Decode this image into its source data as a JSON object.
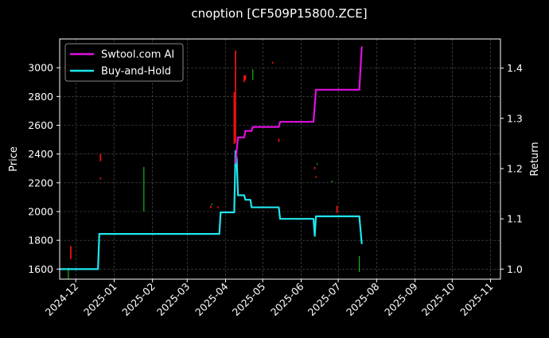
{
  "chart_data": {
    "type": "line",
    "title": "cnoption [CF509P15800.ZCE]",
    "xlabel": "",
    "ylabel": "Price",
    "y2label": "Return",
    "ylim": [
      1530,
      3200
    ],
    "y2lim": [
      0.98,
      1.458
    ],
    "yticks": [
      1600,
      1800,
      2000,
      2200,
      2400,
      2600,
      2800,
      3000
    ],
    "y2ticks": [
      1.0,
      1.1,
      1.2,
      1.3,
      1.4
    ],
    "y2tick_labels": [
      "1.0",
      "1.1",
      "1.2",
      "1.3",
      "1.4"
    ],
    "xlim": [
      "2024-11-18",
      "2025-11-09"
    ],
    "xticks": [
      "2024-12-01",
      "2025-01-01",
      "2025-02-01",
      "2025-03-01",
      "2025-04-01",
      "2025-05-01",
      "2025-06-01",
      "2025-07-01",
      "2025-08-01",
      "2025-09-01",
      "2025-10-01",
      "2025-11-01"
    ],
    "xtick_labels": [
      "2024-12",
      "2025-01",
      "2025-02",
      "2025-03",
      "2025-04",
      "2025-05",
      "2025-06",
      "2025-07",
      "2025-08",
      "2025-09",
      "2025-10",
      "2025-11"
    ],
    "grid": true,
    "legend_position": "top-left",
    "colors": {
      "background": "#000000",
      "strategy": "#e010e0",
      "benchmark": "#1ee6ee",
      "up": "#18b418",
      "down": "#ee1010",
      "grid": "#555555"
    },
    "series": [
      {
        "name": "Swtool.com AI",
        "axis": "return",
        "points": [
          [
            "2025-04-09",
            1.21
          ],
          [
            "2025-04-10",
            1.236
          ],
          [
            "2025-04-11",
            1.262
          ],
          [
            "2025-04-16",
            1.262
          ],
          [
            "2025-04-17",
            1.275
          ],
          [
            "2025-04-22",
            1.275
          ],
          [
            "2025-04-23",
            1.283
          ],
          [
            "2025-05-14",
            1.283
          ],
          [
            "2025-05-15",
            1.293
          ],
          [
            "2025-06-11",
            1.293
          ],
          [
            "2025-06-13",
            1.357
          ],
          [
            "2025-07-18",
            1.357
          ],
          [
            "2025-07-20",
            1.443
          ]
        ]
      },
      {
        "name": "Buy-and-Hold",
        "axis": "return",
        "points": [
          [
            "2024-11-18",
            1.0
          ],
          [
            "2024-12-19",
            1.0
          ],
          [
            "2024-12-20",
            1.07
          ],
          [
            "2025-03-27",
            1.07
          ],
          [
            "2025-03-28",
            1.113
          ],
          [
            "2025-04-08",
            1.113
          ],
          [
            "2025-04-09",
            1.235
          ],
          [
            "2025-04-10",
            1.22
          ],
          [
            "2025-04-11",
            1.147
          ],
          [
            "2025-04-16",
            1.147
          ],
          [
            "2025-04-17",
            1.138
          ],
          [
            "2025-04-21",
            1.138
          ],
          [
            "2025-04-22",
            1.123
          ],
          [
            "2025-05-14",
            1.123
          ],
          [
            "2025-05-15",
            1.1
          ],
          [
            "2025-06-11",
            1.1
          ],
          [
            "2025-06-12",
            1.066
          ],
          [
            "2025-06-13",
            1.105
          ],
          [
            "2025-07-18",
            1.105
          ],
          [
            "2025-07-20",
            1.05
          ]
        ]
      }
    ],
    "candles": [
      {
        "date": "2024-11-25",
        "low": 1530,
        "high": 1610,
        "dir": "up"
      },
      {
        "date": "2024-11-27",
        "low": 1670,
        "high": 1760,
        "dir": "down"
      },
      {
        "date": "2024-12-21",
        "low": 2350,
        "high": 2400,
        "dir": "down"
      },
      {
        "date": "2024-12-21",
        "low": 2225,
        "high": 2235,
        "dir": "down"
      },
      {
        "date": "2025-01-25",
        "low": 2000,
        "high": 2310,
        "dir": "up"
      },
      {
        "date": "2025-03-20",
        "low": 2025,
        "high": 2040,
        "dir": "down"
      },
      {
        "date": "2025-03-21",
        "low": 2045,
        "high": 2055,
        "dir": "up"
      },
      {
        "date": "2025-03-26",
        "low": 2025,
        "high": 2035,
        "dir": "down"
      },
      {
        "date": "2025-04-08",
        "low": 2470,
        "high": 2830,
        "dir": "down"
      },
      {
        "date": "2025-04-09",
        "low": 2480,
        "high": 3120,
        "dir": "down"
      },
      {
        "date": "2025-04-16",
        "low": 2900,
        "high": 2945,
        "dir": "down"
      },
      {
        "date": "2025-04-17",
        "low": 2915,
        "high": 2950,
        "dir": "down"
      },
      {
        "date": "2025-04-23",
        "low": 2915,
        "high": 2990,
        "dir": "up"
      },
      {
        "date": "2025-05-09",
        "low": 3030,
        "high": 3040,
        "dir": "down"
      },
      {
        "date": "2025-05-14",
        "low": 2485,
        "high": 2505,
        "dir": "down"
      },
      {
        "date": "2025-06-12",
        "low": 2295,
        "high": 2310,
        "dir": "down"
      },
      {
        "date": "2025-06-13",
        "low": 2235,
        "high": 2245,
        "dir": "down"
      },
      {
        "date": "2025-06-14",
        "low": 2325,
        "high": 2335,
        "dir": "up"
      },
      {
        "date": "2025-06-26",
        "low": 2205,
        "high": 2215,
        "dir": "up"
      },
      {
        "date": "2025-06-30",
        "low": 1990,
        "high": 2040,
        "dir": "down"
      },
      {
        "date": "2025-07-18",
        "low": 1580,
        "high": 1690,
        "dir": "up"
      }
    ]
  }
}
